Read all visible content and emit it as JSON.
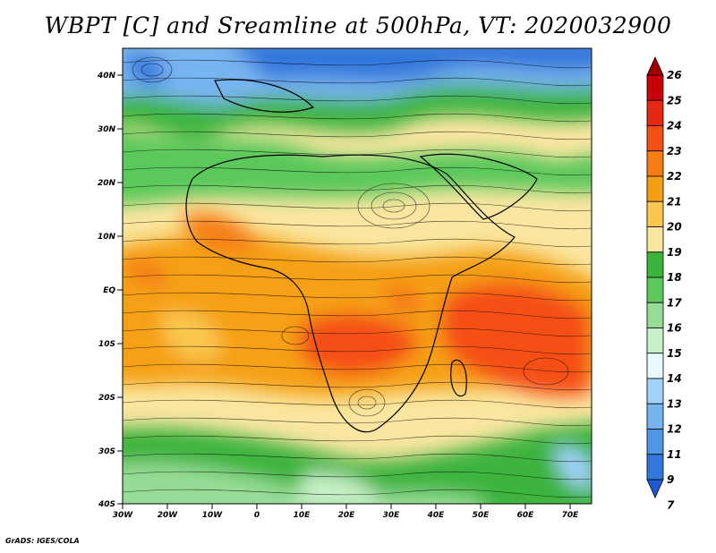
{
  "title": "WBPT [C] and Sreamline at 500hPa, VT: 2020032900",
  "credit": "GrADS: IGES/COLA",
  "map": {
    "lat_labels": [
      "40N",
      "30N",
      "20N",
      "10N",
      "EQ",
      "10S",
      "20S",
      "30S",
      "40S"
    ],
    "lon_labels": [
      "30W",
      "20W",
      "10W",
      "0",
      "10E",
      "20E",
      "30E",
      "40E",
      "50E",
      "60E",
      "70E"
    ]
  },
  "colorbar": {
    "levels": [
      "26",
      "25",
      "24",
      "23",
      "22",
      "21",
      "20",
      "19",
      "18",
      "17",
      "16",
      "15",
      "14",
      "13",
      "12",
      "11",
      "9",
      "7"
    ],
    "colors": [
      "#a50000",
      "#c8000a",
      "#e62814",
      "#f55014",
      "#f57d14",
      "#f5a014",
      "#fac850",
      "#fae6a0",
      "#3cb43c",
      "#5ac85a",
      "#96dc96",
      "#c8f0c8",
      "#e6faff",
      "#a0d2fa",
      "#78b4f0",
      "#5096e6",
      "#3278dc",
      "#1e5ad2"
    ]
  }
}
